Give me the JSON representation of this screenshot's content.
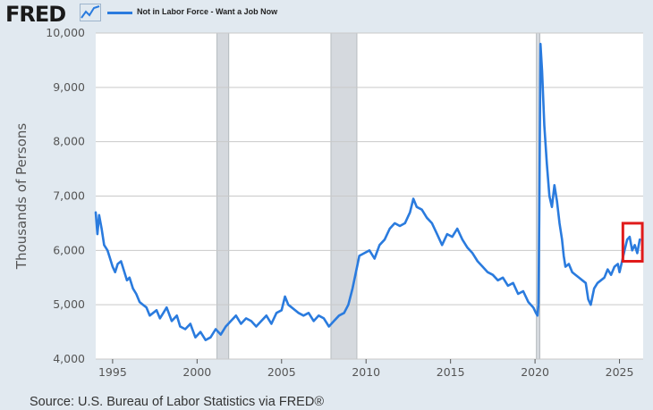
{
  "header": {
    "logo_text": "FRED",
    "icon": "line-chart-icon"
  },
  "source_text": "Source: U.S. Bureau of Labor Statistics via FRED®",
  "colors": {
    "series": "#2a7bde",
    "recession": "#d5d9de",
    "highlight": "#e01b1b",
    "plot_background": "#ffffff",
    "page_background": "#e1e9f0"
  },
  "chart_data": {
    "type": "line",
    "title": "",
    "xlabel": "",
    "ylabel": "Thousands of Persons",
    "xlim": [
      1994.0,
      2026.4
    ],
    "ylim": [
      4000,
      10000
    ],
    "grid": "horizontal",
    "legend_placement": "top-left",
    "y_ticks": [
      {
        "value": 4000,
        "label": "4,000"
      },
      {
        "value": 5000,
        "label": "5,000"
      },
      {
        "value": 6000,
        "label": "6,000"
      },
      {
        "value": 7000,
        "label": "7,000"
      },
      {
        "value": 8000,
        "label": "8,000"
      },
      {
        "value": 9000,
        "label": "9,000"
      },
      {
        "value": 10000,
        "label": "10,000"
      }
    ],
    "x_ticks": [
      {
        "value": 1995,
        "label": "1995"
      },
      {
        "value": 2000,
        "label": "2000"
      },
      {
        "value": 2005,
        "label": "2005"
      },
      {
        "value": 2010,
        "label": "2010"
      },
      {
        "value": 2015,
        "label": "2015"
      },
      {
        "value": 2020,
        "label": "2020"
      },
      {
        "value": 2025,
        "label": "2025"
      }
    ],
    "recessions": [
      {
        "start": 2001.17,
        "end": 2001.88
      },
      {
        "start": 2007.92,
        "end": 2009.46
      },
      {
        "start": 2020.08,
        "end": 2020.29
      }
    ],
    "highlight_box": {
      "x_start": 2025.2,
      "x_end": 2026.35,
      "y_min": 5800,
      "y_max": 6500
    },
    "series": [
      {
        "name": "Not in Labor Force - Want a Job Now",
        "x": [
          1994.0,
          1994.1,
          1994.2,
          1994.35,
          1994.5,
          1994.7,
          1994.85,
          1995.0,
          1995.15,
          1995.3,
          1995.5,
          1995.7,
          1995.85,
          1996.0,
          1996.2,
          1996.4,
          1996.6,
          1996.8,
          1997.0,
          1997.2,
          1997.4,
          1997.6,
          1997.8,
          1998.0,
          1998.2,
          1998.5,
          1998.8,
          1999.0,
          1999.3,
          1999.6,
          1999.9,
          2000.2,
          2000.5,
          2000.8,
          2001.1,
          2001.4,
          2001.7,
          2002.0,
          2002.3,
          2002.6,
          2002.9,
          2003.2,
          2003.5,
          2003.8,
          2004.1,
          2004.4,
          2004.7,
          2005.0,
          2005.2,
          2005.4,
          2005.6,
          2005.8,
          2006.0,
          2006.3,
          2006.6,
          2006.9,
          2007.2,
          2007.5,
          2007.8,
          2008.1,
          2008.4,
          2008.7,
          2008.95,
          2009.2,
          2009.4,
          2009.6,
          2009.9,
          2010.2,
          2010.5,
          2010.8,
          2011.1,
          2011.4,
          2011.7,
          2012.0,
          2012.3,
          2012.6,
          2012.8,
          2013.0,
          2013.3,
          2013.6,
          2013.9,
          2014.2,
          2014.5,
          2014.8,
          2015.1,
          2015.4,
          2015.7,
          2016.0,
          2016.3,
          2016.6,
          2016.9,
          2017.2,
          2017.5,
          2017.8,
          2018.1,
          2018.4,
          2018.7,
          2019.0,
          2019.3,
          2019.6,
          2019.9,
          2020.05,
          2020.15,
          2020.2,
          2020.25,
          2020.32,
          2020.42,
          2020.55,
          2020.7,
          2020.85,
          2021.0,
          2021.15,
          2021.3,
          2021.45,
          2021.6,
          2021.7,
          2021.8,
          2022.0,
          2022.2,
          2022.4,
          2022.6,
          2022.8,
          2023.0,
          2023.15,
          2023.3,
          2023.5,
          2023.7,
          2023.9,
          2024.1,
          2024.3,
          2024.5,
          2024.7,
          2024.9,
          2025.0,
          2025.15,
          2025.3,
          2025.45,
          2025.6,
          2025.75,
          2025.9,
          2026.05,
          2026.2
        ],
        "values": [
          6700,
          6300,
          6650,
          6400,
          6100,
          6000,
          5850,
          5700,
          5600,
          5750,
          5800,
          5600,
          5450,
          5500,
          5300,
          5200,
          5050,
          5000,
          4950,
          4800,
          4850,
          4900,
          4750,
          4850,
          4950,
          4700,
          4800,
          4600,
          4550,
          4650,
          4400,
          4500,
          4350,
          4400,
          4550,
          4450,
          4600,
          4700,
          4800,
          4650,
          4750,
          4700,
          4600,
          4700,
          4800,
          4650,
          4850,
          4900,
          5150,
          5000,
          4950,
          4900,
          4850,
          4800,
          4850,
          4700,
          4800,
          4750,
          4600,
          4700,
          4800,
          4850,
          5000,
          5300,
          5600,
          5900,
          5950,
          6000,
          5850,
          6100,
          6200,
          6400,
          6500,
          6450,
          6500,
          6700,
          6950,
          6800,
          6750,
          6600,
          6500,
          6300,
          6100,
          6300,
          6250,
          6400,
          6200,
          6050,
          5950,
          5800,
          5700,
          5600,
          5550,
          5450,
          5500,
          5350,
          5400,
          5200,
          5250,
          5050,
          4950,
          4850,
          4800,
          5000,
          6500,
          9800,
          9300,
          8300,
          7600,
          7000,
          6800,
          7200,
          6900,
          6500,
          6200,
          5900,
          5700,
          5750,
          5600,
          5550,
          5500,
          5450,
          5400,
          5100,
          5000,
          5300,
          5400,
          5450,
          5500,
          5650,
          5550,
          5700,
          5750,
          5600,
          5800,
          6000,
          6200,
          6250,
          6000,
          6100,
          5950,
          6200
        ]
      }
    ]
  }
}
